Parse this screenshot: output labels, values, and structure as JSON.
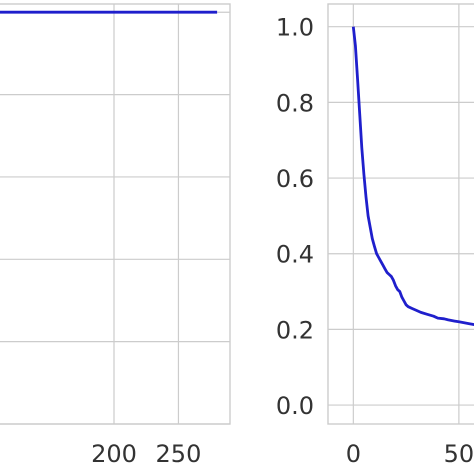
{
  "chart_data": [
    {
      "type": "line",
      "xlim": [
        110,
        290
      ],
      "ylim": [
        0,
        1.02
      ],
      "x_ticks": [
        200,
        250
      ],
      "y_ticks": [],
      "grid": true,
      "series": [
        {
          "color": "#1f1fcc",
          "x": [
            110,
            150,
            200,
            250,
            280
          ],
          "y": [
            1.0,
            1.0,
            1.0,
            1.0,
            1.0
          ]
        }
      ]
    },
    {
      "type": "line",
      "xlim": [
        -12,
        60
      ],
      "ylim": [
        -0.05,
        1.06
      ],
      "x_ticks": [
        0,
        50
      ],
      "y_ticks": [
        0.0,
        0.2,
        0.4,
        0.6,
        0.8,
        1.0
      ],
      "x_tick_labels": [
        "0",
        "50"
      ],
      "y_tick_labels": [
        "0.0",
        "0.2",
        "0.4",
        "0.6",
        "0.8",
        "1.0"
      ],
      "grid": true,
      "series": [
        {
          "color": "#1f1fcc",
          "x": [
            0,
            1,
            2,
            3,
            4,
            5,
            6,
            7,
            8,
            9,
            10,
            11,
            12,
            13,
            14,
            15,
            16,
            17,
            18,
            19,
            20,
            21,
            22,
            23,
            24,
            25,
            26,
            28,
            30,
            32,
            35,
            38,
            40,
            43,
            45,
            48,
            50,
            55,
            60
          ],
          "y": [
            1.0,
            0.95,
            0.86,
            0.77,
            0.68,
            0.61,
            0.55,
            0.5,
            0.47,
            0.44,
            0.42,
            0.4,
            0.39,
            0.38,
            0.37,
            0.36,
            0.35,
            0.345,
            0.34,
            0.33,
            0.315,
            0.305,
            0.3,
            0.285,
            0.275,
            0.265,
            0.26,
            0.255,
            0.25,
            0.245,
            0.24,
            0.235,
            0.23,
            0.228,
            0.225,
            0.222,
            0.22,
            0.215,
            0.21
          ]
        }
      ]
    }
  ]
}
